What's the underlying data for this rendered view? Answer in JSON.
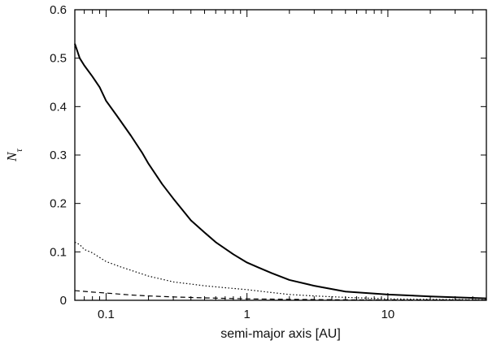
{
  "chart_data": {
    "type": "line",
    "xlabel": "semi-major axis [AU]",
    "ylabel": "N_tau",
    "ylabel_main": "N",
    "ylabel_sub": "τ",
    "xscale": "log",
    "xlim": [
      0.06,
      50
    ],
    "ylim": [
      0,
      0.6
    ],
    "grid": false,
    "legend": "none",
    "x_ticks": [
      0.1,
      1,
      10
    ],
    "x_tick_labels": [
      "0.1",
      "1",
      "10"
    ],
    "y_ticks": [
      0,
      0.1,
      0.2,
      0.3,
      0.4,
      0.5,
      0.6
    ],
    "y_tick_labels": [
      "0",
      "0.1",
      "0.2",
      "0.3",
      "0.4",
      "0.5",
      "0.6"
    ],
    "series": [
      {
        "style": "solid",
        "color": "#000000",
        "x": [
          0.06,
          0.065,
          0.07,
          0.08,
          0.09,
          0.1,
          0.12,
          0.15,
          0.18,
          0.2,
          0.25,
          0.3,
          0.4,
          0.5,
          0.6,
          0.8,
          1.0,
          1.2,
          1.5,
          2.0,
          3.0,
          5.0,
          10,
          20,
          50
        ],
        "y": [
          0.53,
          0.5,
          0.485,
          0.462,
          0.44,
          0.412,
          0.38,
          0.34,
          0.305,
          0.282,
          0.24,
          0.21,
          0.165,
          0.14,
          0.12,
          0.095,
          0.078,
          0.068,
          0.056,
          0.042,
          0.03,
          0.018,
          0.012,
          0.008,
          0.004
        ]
      },
      {
        "style": "dotted",
        "color": "#000000",
        "x": [
          0.06,
          0.065,
          0.07,
          0.08,
          0.1,
          0.13,
          0.15,
          0.2,
          0.3,
          0.5,
          0.7,
          1.0,
          1.5,
          2.0,
          3.0,
          5.0,
          10,
          20,
          50
        ],
        "y": [
          0.12,
          0.115,
          0.105,
          0.098,
          0.08,
          0.068,
          0.062,
          0.05,
          0.038,
          0.03,
          0.026,
          0.022,
          0.016,
          0.012,
          0.009,
          0.006,
          0.003,
          0.002,
          0.001
        ]
      },
      {
        "style": "dashed",
        "color": "#000000",
        "x": [
          0.06,
          0.08,
          0.1,
          0.15,
          0.2,
          0.3,
          0.5,
          1.0,
          2.0,
          5.0,
          10,
          50
        ],
        "y": [
          0.02,
          0.017,
          0.015,
          0.011,
          0.009,
          0.007,
          0.005,
          0.003,
          0.002,
          0.001,
          0.0008,
          0.0005
        ]
      }
    ]
  }
}
